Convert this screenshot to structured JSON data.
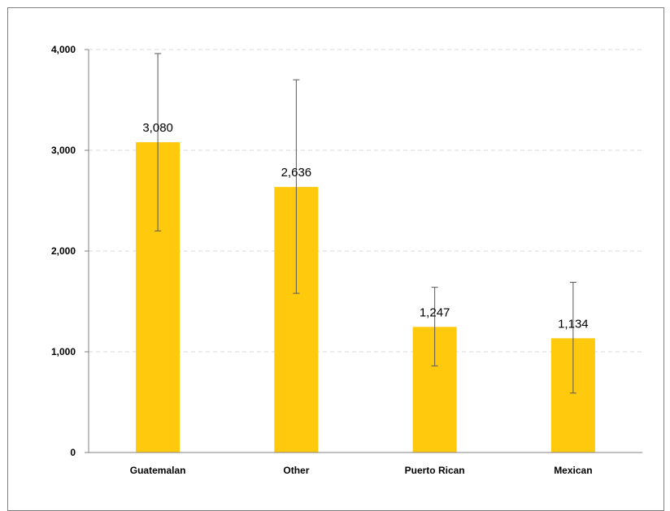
{
  "chart_data": {
    "type": "bar",
    "categories": [
      "Guatemalan",
      "Other",
      "Puerto Rican",
      "Mexican"
    ],
    "values": [
      3080,
      2636,
      1247,
      1134
    ],
    "value_labels": [
      "3,080",
      "2,636",
      "1,247",
      "1,134"
    ],
    "error_bars": {
      "low": [
        2200,
        1580,
        860,
        590
      ],
      "high": [
        3960,
        3700,
        1640,
        1690
      ]
    },
    "ylim": [
      0,
      4000
    ],
    "yticks": [
      0,
      1000,
      2000,
      3000,
      4000
    ],
    "ytick_labels": [
      "0",
      "1,000",
      "2,000",
      "3,000",
      "4,000"
    ],
    "title": "",
    "xlabel": "",
    "ylabel": "",
    "grid": true,
    "bar_color": "#FFC90E",
    "error_color": "#595959",
    "grid_color": "#d9d9d9"
  }
}
